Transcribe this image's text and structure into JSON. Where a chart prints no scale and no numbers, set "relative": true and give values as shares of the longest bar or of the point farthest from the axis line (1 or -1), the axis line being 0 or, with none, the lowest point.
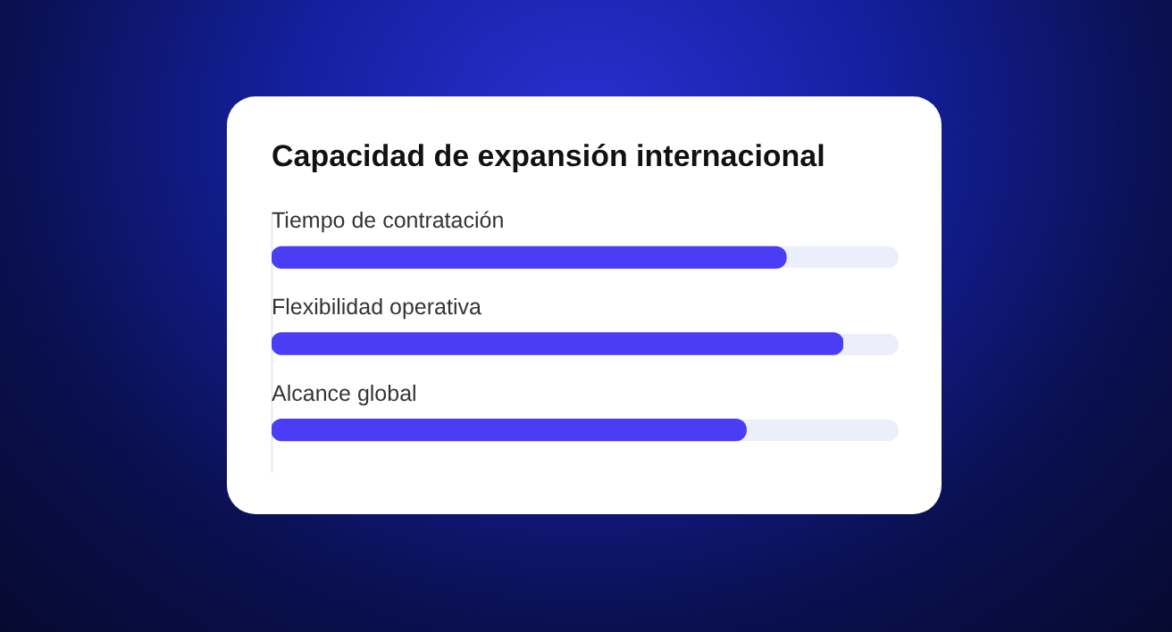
{
  "chart_data": {
    "type": "bar",
    "orientation": "horizontal",
    "relative": true,
    "title": "Capacidad de expansión internacional",
    "categories": [
      "Tiempo de contratación",
      "Flexibilidad operativa",
      "Alcance global"
    ],
    "values": [
      0.9,
      1,
      0.83
    ],
    "color": "#4a3df5",
    "legend": false
  }
}
